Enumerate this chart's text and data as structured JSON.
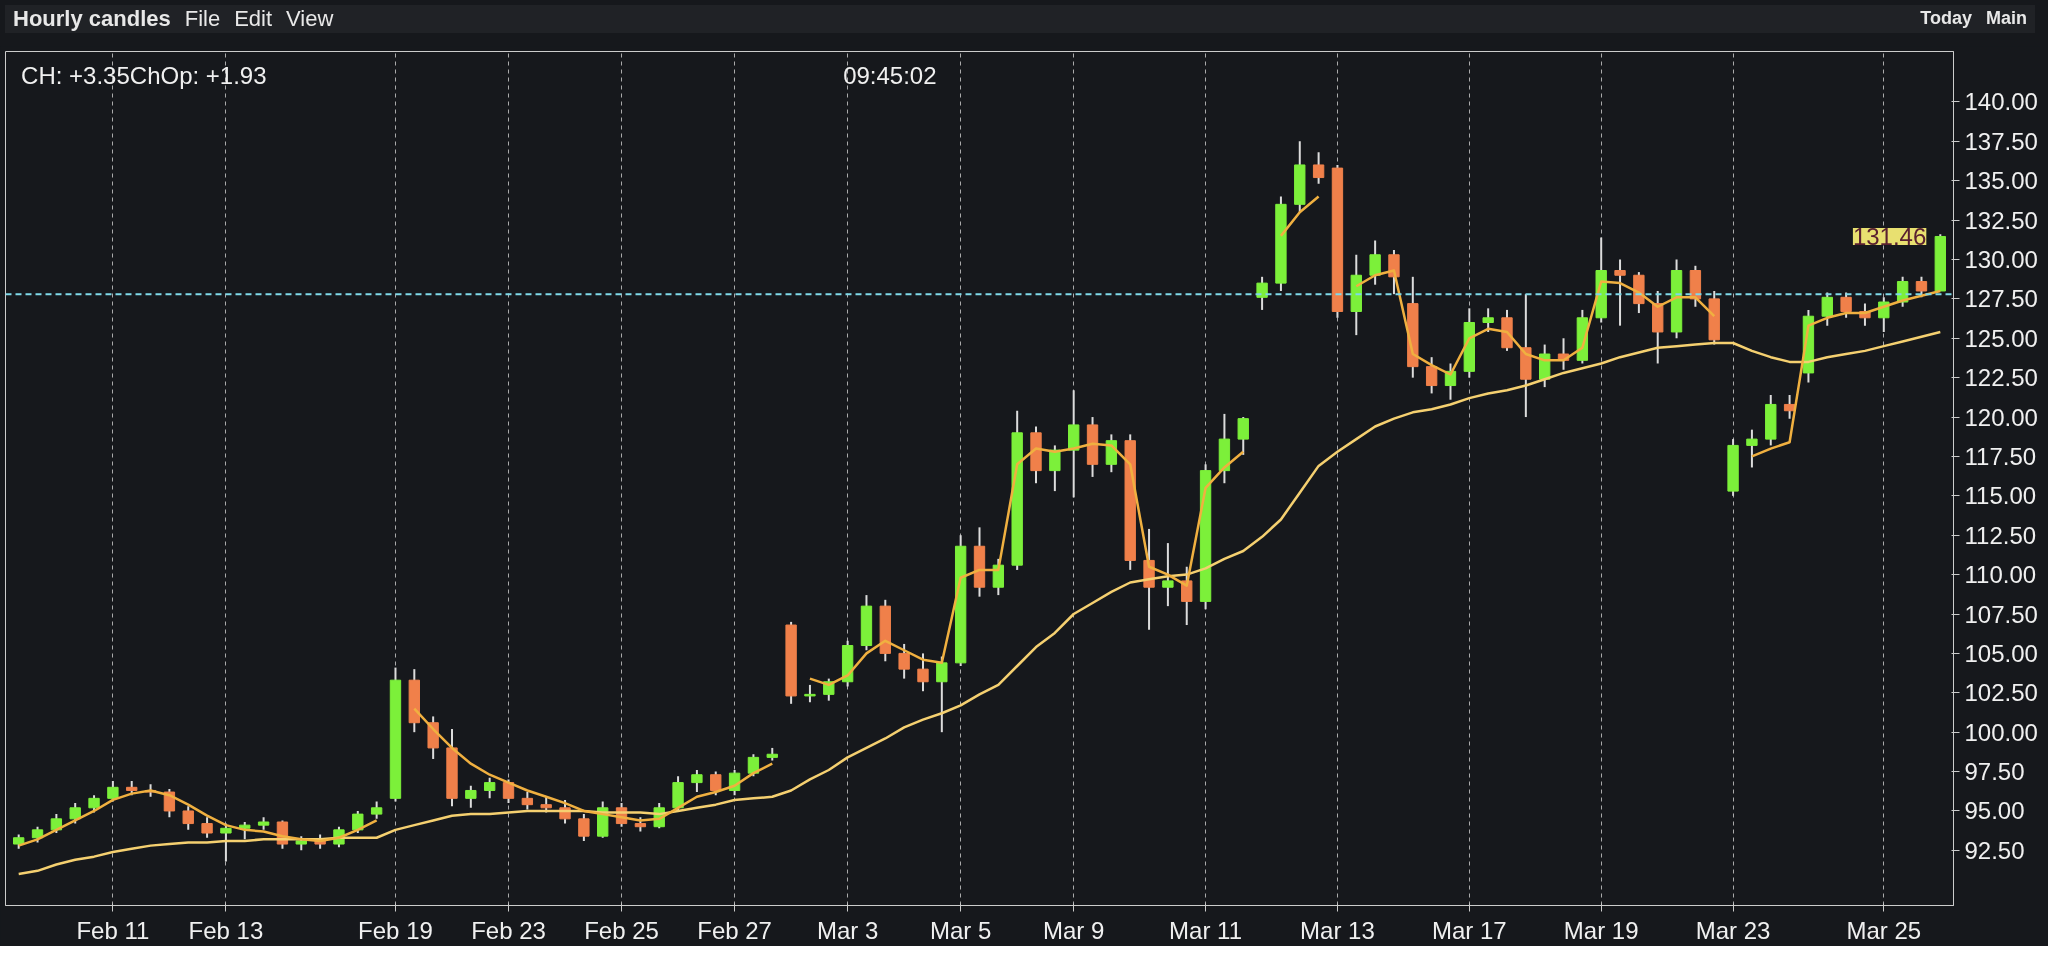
{
  "chart_data": {
    "type": "candlestick",
    "title": "Hourly candles",
    "categories": [
      null,
      null,
      null,
      null,
      null,
      "Feb 11",
      null,
      null,
      null,
      null,
      null,
      "Feb 13",
      null,
      null,
      null,
      null,
      null,
      null,
      null,
      null,
      "Feb 19",
      null,
      null,
      null,
      null,
      null,
      "Feb 23",
      null,
      null,
      null,
      null,
      null,
      "Feb 25",
      null,
      null,
      null,
      null,
      null,
      "Feb 27",
      null,
      null,
      null,
      null,
      null,
      "Mar 3",
      null,
      null,
      null,
      null,
      null,
      "Mar 5",
      null,
      null,
      null,
      null,
      null,
      "Mar 9",
      null,
      null,
      null,
      null,
      null,
      null,
      "Mar 11",
      null,
      null,
      null,
      null,
      null,
      null,
      "Mar 13",
      null,
      null,
      null,
      null,
      null,
      null,
      "Mar 17",
      null,
      null,
      null,
      null,
      null,
      null,
      "Mar 19",
      null,
      null,
      null,
      null,
      null,
      null,
      "Mar 23",
      null,
      null,
      null,
      null,
      null,
      null,
      null,
      "Mar 25",
      null,
      null,
      null
    ],
    "ohlc": [
      [
        92.9,
        93.5,
        92.6,
        93.3
      ],
      [
        93.3,
        94.0,
        93.0,
        93.8
      ],
      [
        93.8,
        94.8,
        93.6,
        94.5
      ],
      [
        94.5,
        95.5,
        94.2,
        95.2
      ],
      [
        95.2,
        96.0,
        94.9,
        95.8
      ],
      [
        95.8,
        96.9,
        95.6,
        96.5
      ],
      [
        96.5,
        96.9,
        96.0,
        96.3
      ],
      [
        96.3,
        96.7,
        95.9,
        96.2
      ],
      [
        96.2,
        96.4,
        94.6,
        95.0
      ],
      [
        95.0,
        95.3,
        93.8,
        94.2
      ],
      [
        94.2,
        94.6,
        93.3,
        93.6
      ],
      [
        93.6,
        94.2,
        91.8,
        93.9
      ],
      [
        93.9,
        94.3,
        93.2,
        94.1
      ],
      [
        94.1,
        94.6,
        93.8,
        94.3
      ],
      [
        94.3,
        94.4,
        92.6,
        92.9
      ],
      [
        92.9,
        93.4,
        92.5,
        93.1
      ],
      [
        93.1,
        93.5,
        92.6,
        92.9
      ],
      [
        92.9,
        94.0,
        92.7,
        93.8
      ],
      [
        93.8,
        95.0,
        93.6,
        94.8
      ],
      [
        94.8,
        95.6,
        94.5,
        95.2
      ],
      [
        95.8,
        104.1,
        95.6,
        103.3
      ],
      [
        103.3,
        104.0,
        100.0,
        100.6
      ],
      [
        100.6,
        101.0,
        98.3,
        99.0
      ],
      [
        99.0,
        100.2,
        95.3,
        95.8
      ],
      [
        95.8,
        96.6,
        95.2,
        96.3
      ],
      [
        96.3,
        97.1,
        95.8,
        96.8
      ],
      [
        96.8,
        97.0,
        95.5,
        95.8
      ],
      [
        95.8,
        96.2,
        95.1,
        95.4
      ],
      [
        95.4,
        95.9,
        94.9,
        95.2
      ],
      [
        95.2,
        95.7,
        94.2,
        94.5
      ],
      [
        94.5,
        94.8,
        93.1,
        93.4
      ],
      [
        93.4,
        95.6,
        93.3,
        95.2
      ],
      [
        95.2,
        95.5,
        94.0,
        94.2
      ],
      [
        94.2,
        94.6,
        93.7,
        94.0
      ],
      [
        94.0,
        95.5,
        93.9,
        95.2
      ],
      [
        95.2,
        97.2,
        95.0,
        96.8
      ],
      [
        96.8,
        97.6,
        96.2,
        97.3
      ],
      [
        97.3,
        97.5,
        96.0,
        96.3
      ],
      [
        96.3,
        97.6,
        96.0,
        97.4
      ],
      [
        97.4,
        98.6,
        97.2,
        98.4
      ],
      [
        98.4,
        99.0,
        98.2,
        98.6
      ],
      [
        106.8,
        107.0,
        101.8,
        102.3
      ],
      [
        102.3,
        103.0,
        101.9,
        102.4
      ],
      [
        102.4,
        103.4,
        102.0,
        103.2
      ],
      [
        103.2,
        105.8,
        102.9,
        105.5
      ],
      [
        105.5,
        108.7,
        105.2,
        108.0
      ],
      [
        108.0,
        108.4,
        104.5,
        105.0
      ],
      [
        105.0,
        105.6,
        103.4,
        104.0
      ],
      [
        104.0,
        105.0,
        102.6,
        103.2
      ],
      [
        103.2,
        104.8,
        100.0,
        104.4
      ],
      [
        104.4,
        112.5,
        104.2,
        111.8
      ],
      [
        111.8,
        113.0,
        108.6,
        109.2
      ],
      [
        109.2,
        111.0,
        108.7,
        110.6
      ],
      [
        110.6,
        120.4,
        110.3,
        119.0
      ],
      [
        119.0,
        119.4,
        115.8,
        116.6
      ],
      [
        116.6,
        118.2,
        115.3,
        117.9
      ],
      [
        117.9,
        121.7,
        114.9,
        119.5
      ],
      [
        119.5,
        120.0,
        116.2,
        117.0
      ],
      [
        117.0,
        118.9,
        116.5,
        118.5
      ],
      [
        118.5,
        118.9,
        110.3,
        110.9
      ],
      [
        110.9,
        112.9,
        106.5,
        109.2
      ],
      [
        109.2,
        112.0,
        108.0,
        109.6
      ],
      [
        109.6,
        110.5,
        106.8,
        108.3
      ],
      [
        108.3,
        117.0,
        107.8,
        116.6
      ],
      [
        116.6,
        120.2,
        115.8,
        118.6
      ],
      [
        118.6,
        120.0,
        117.6,
        119.9
      ],
      [
        127.6,
        128.9,
        126.8,
        128.5
      ],
      [
        128.5,
        134.0,
        128.0,
        133.5
      ],
      [
        133.5,
        137.5,
        133.0,
        136.0
      ],
      [
        136.0,
        136.8,
        134.8,
        135.2
      ],
      [
        135.8,
        136.0,
        126.3,
        126.7
      ],
      [
        126.7,
        130.3,
        125.2,
        129.0
      ],
      [
        129.0,
        131.2,
        128.4,
        130.3
      ],
      [
        130.3,
        130.6,
        127.8,
        128.9
      ],
      [
        127.2,
        128.9,
        122.5,
        123.2
      ],
      [
        123.2,
        123.8,
        121.5,
        122.0
      ],
      [
        122.0,
        123.4,
        121.1,
        122.9
      ],
      [
        122.9,
        126.9,
        122.5,
        126.0
      ],
      [
        126.0,
        126.9,
        125.4,
        126.3
      ],
      [
        126.3,
        126.8,
        124.2,
        124.4
      ],
      [
        124.4,
        127.8,
        120.0,
        122.4
      ],
      [
        122.4,
        124.6,
        121.9,
        124.0
      ],
      [
        124.0,
        125.0,
        123.0,
        123.6
      ],
      [
        123.6,
        126.8,
        123.4,
        126.3
      ],
      [
        126.3,
        131.4,
        126.0,
        129.3
      ],
      [
        129.3,
        130.0,
        125.8,
        129.0
      ],
      [
        129.0,
        129.2,
        126.6,
        127.2
      ],
      [
        127.2,
        128.0,
        123.4,
        125.4
      ],
      [
        125.4,
        130.0,
        125.0,
        129.3
      ],
      [
        129.3,
        129.6,
        127.0,
        127.5
      ],
      [
        127.5,
        128.0,
        124.6,
        124.9
      ],
      [
        115.3,
        118.6,
        115.0,
        118.2
      ],
      [
        118.2,
        119.2,
        116.8,
        118.6
      ],
      [
        118.6,
        121.4,
        118.2,
        120.8
      ],
      [
        120.8,
        121.4,
        119.9,
        120.4
      ],
      [
        122.8,
        126.8,
        122.2,
        126.4
      ],
      [
        126.4,
        127.9,
        125.8,
        127.6
      ],
      [
        127.6,
        127.9,
        126.3,
        126.7
      ],
      [
        126.7,
        127.2,
        125.8,
        126.3
      ],
      [
        126.3,
        127.6,
        125.4,
        127.3
      ],
      [
        127.3,
        128.9,
        127.0,
        128.6
      ],
      [
        128.6,
        128.9,
        127.6,
        128.0
      ],
      [
        128.0,
        131.6,
        128.0,
        131.46
      ]
    ],
    "colors": [
      "#7cf03a",
      "#7cf03a",
      "#7cf03a",
      "#7cf03a",
      "#7cf03a",
      "#7cf03a",
      "#f0804a",
      "#f0804a",
      "#f0804a",
      "#f0804a",
      "#f0804a",
      "#7cf03a",
      "#7cf03a",
      "#7cf03a",
      "#f0804a",
      "#7cf03a",
      "#f0804a",
      "#7cf03a",
      "#7cf03a",
      "#7cf03a",
      "#7cf03a",
      "#f0804a",
      "#f0804a",
      "#f0804a",
      "#7cf03a",
      "#7cf03a",
      "#f0804a",
      "#f0804a",
      "#f0804a",
      "#f0804a",
      "#f0804a",
      "#7cf03a",
      "#f0804a",
      "#f0804a",
      "#7cf03a",
      "#7cf03a",
      "#7cf03a",
      "#f0804a",
      "#7cf03a",
      "#7cf03a",
      "#7cf03a",
      "#f0804a",
      "#7cf03a",
      "#7cf03a",
      "#7cf03a",
      "#7cf03a",
      "#f0804a",
      "#f0804a",
      "#f0804a",
      "#7cf03a",
      "#7cf03a",
      "#f0804a",
      "#7cf03a",
      "#7cf03a",
      "#f0804a",
      "#7cf03a",
      "#7cf03a",
      "#f0804a",
      "#7cf03a",
      "#f0804a",
      "#f0804a",
      "#7cf03a",
      "#f0804a",
      "#7cf03a",
      "#7cf03a",
      "#7cf03a",
      "#7cf03a",
      "#7cf03a",
      "#7cf03a",
      "#f0804a",
      "#f0804a",
      "#7cf03a",
      "#7cf03a",
      "#f0804a",
      "#f0804a",
      "#f0804a",
      "#7cf03a",
      "#7cf03a",
      "#7cf03a",
      "#f0804a",
      "#f0804a",
      "#7cf03a",
      "#f0804a",
      "#7cf03a",
      "#7cf03a",
      "#f0804a",
      "#f0804a",
      "#f0804a",
      "#7cf03a",
      "#f0804a",
      "#f0804a",
      "#7cf03a",
      "#7cf03a",
      "#7cf03a",
      "#f0804a",
      "#7cf03a",
      "#7cf03a",
      "#f0804a",
      "#f0804a",
      "#7cf03a",
      "#7cf03a",
      "#f0804a",
      "#7cf03a"
    ],
    "series": [
      {
        "type": "line",
        "color": "#f5d070",
        "values": [
          91.0,
          91.2,
          91.6,
          91.9,
          92.1,
          92.4,
          92.6,
          92.8,
          92.9,
          93.0,
          93.0,
          93.1,
          93.1,
          93.2,
          93.2,
          93.2,
          93.2,
          93.3,
          93.3,
          93.3,
          93.8,
          94.1,
          94.4,
          94.7,
          94.8,
          94.8,
          94.9,
          95.0,
          95.0,
          95.0,
          95.0,
          94.9,
          94.9,
          94.9,
          94.8,
          95.0,
          95.2,
          95.4,
          95.7,
          95.8,
          95.9,
          96.3,
          97.0,
          97.6,
          98.4,
          99.0,
          99.6,
          100.3,
          100.8,
          101.2,
          101.7,
          102.4,
          103.0,
          104.2,
          105.4,
          106.3,
          107.5,
          108.2,
          108.9,
          109.5,
          109.7,
          109.9,
          110.0,
          110.4,
          111.0,
          111.5,
          112.4,
          113.5,
          115.2,
          116.9,
          117.8,
          118.6,
          119.4,
          119.9,
          120.3,
          120.5,
          120.8,
          121.2,
          121.5,
          121.7,
          122.0,
          122.4,
          122.8,
          123.1,
          123.4,
          123.8,
          124.1,
          124.4,
          124.5,
          124.6,
          124.7,
          124.7,
          124.2,
          123.8,
          123.5,
          123.5,
          123.8,
          124.0,
          124.2,
          124.5,
          124.8,
          125.1,
          125.4
        ]
      },
      {
        "type": "line",
        "color": "#f0b040",
        "values": [
          92.8,
          93.2,
          93.8,
          94.4,
          95.0,
          95.7,
          96.1,
          96.3,
          96.0,
          95.4,
          94.7,
          94.1,
          93.8,
          93.7,
          93.4,
          93.2,
          93.1,
          93.3,
          93.8,
          94.4,
          null,
          101.5,
          100.2,
          99.0,
          98.0,
          97.3,
          96.8,
          96.3,
          95.9,
          95.5,
          95.0,
          94.8,
          94.6,
          94.4,
          94.5,
          95.2,
          95.9,
          96.2,
          96.6,
          97.4,
          98.0,
          null,
          103.4,
          103.0,
          103.6,
          105.0,
          105.8,
          105.2,
          104.6,
          104.4,
          109.8,
          110.3,
          110.3,
          117.0,
          118.0,
          117.8,
          118.0,
          118.3,
          118.2,
          117.0,
          110.5,
          110.0,
          109.3,
          115.5,
          116.8,
          117.8,
          null,
          131.5,
          133.0,
          134.0,
          null,
          128.3,
          129.0,
          129.3,
          124.0,
          123.3,
          122.7,
          125.0,
          125.6,
          125.4,
          124.0,
          123.6,
          123.6,
          124.4,
          128.6,
          128.5,
          127.9,
          127.0,
          127.6,
          127.6,
          126.4,
          null,
          117.5,
          118.0,
          118.4,
          125.8,
          126.3,
          126.6,
          126.6,
          127.0,
          127.4,
          127.7,
          128.0
        ]
      }
    ],
    "ylim": [
      89.0,
      143.2
    ],
    "yticks": [
      {
        "value": 92.5,
        "label": "92.50"
      },
      {
        "value": 95,
        "label": "95.00"
      },
      {
        "value": 97.5,
        "label": "97.50"
      },
      {
        "value": 100,
        "label": "100.00"
      },
      {
        "value": 102.5,
        "label": "102.50"
      },
      {
        "value": 105,
        "label": "105.00"
      },
      {
        "value": 107.5,
        "label": "107.50"
      },
      {
        "value": 110,
        "label": "110.00"
      },
      {
        "value": 112.5,
        "label": "112.50"
      },
      {
        "value": 115,
        "label": "115.00"
      },
      {
        "value": 117.5,
        "label": "117.50"
      },
      {
        "value": 120,
        "label": "120.00"
      },
      {
        "value": 122.5,
        "label": "122.50"
      },
      {
        "value": 125,
        "label": "125.00"
      },
      {
        "value": 127.5,
        "label": "127.50"
      },
      {
        "value": 130,
        "label": "130.00"
      },
      {
        "value": 132.5,
        "label": "132.50"
      },
      {
        "value": 135,
        "label": "135.00"
      },
      {
        "value": 137.5,
        "label": "137.50"
      },
      {
        "value": 140,
        "label": "140.00"
      }
    ],
    "grid": "x",
    "ref_lines": [
      {
        "axis": "y",
        "value": 127.8,
        "color": "#7fd8e8",
        "line_style": "dashed"
      }
    ],
    "annotations": [
      "File",
      "Edit",
      "View",
      "Today",
      "Main",
      "CH: +3.35ChOp: +1.93",
      "09:45:02",
      "131.46"
    ]
  }
}
